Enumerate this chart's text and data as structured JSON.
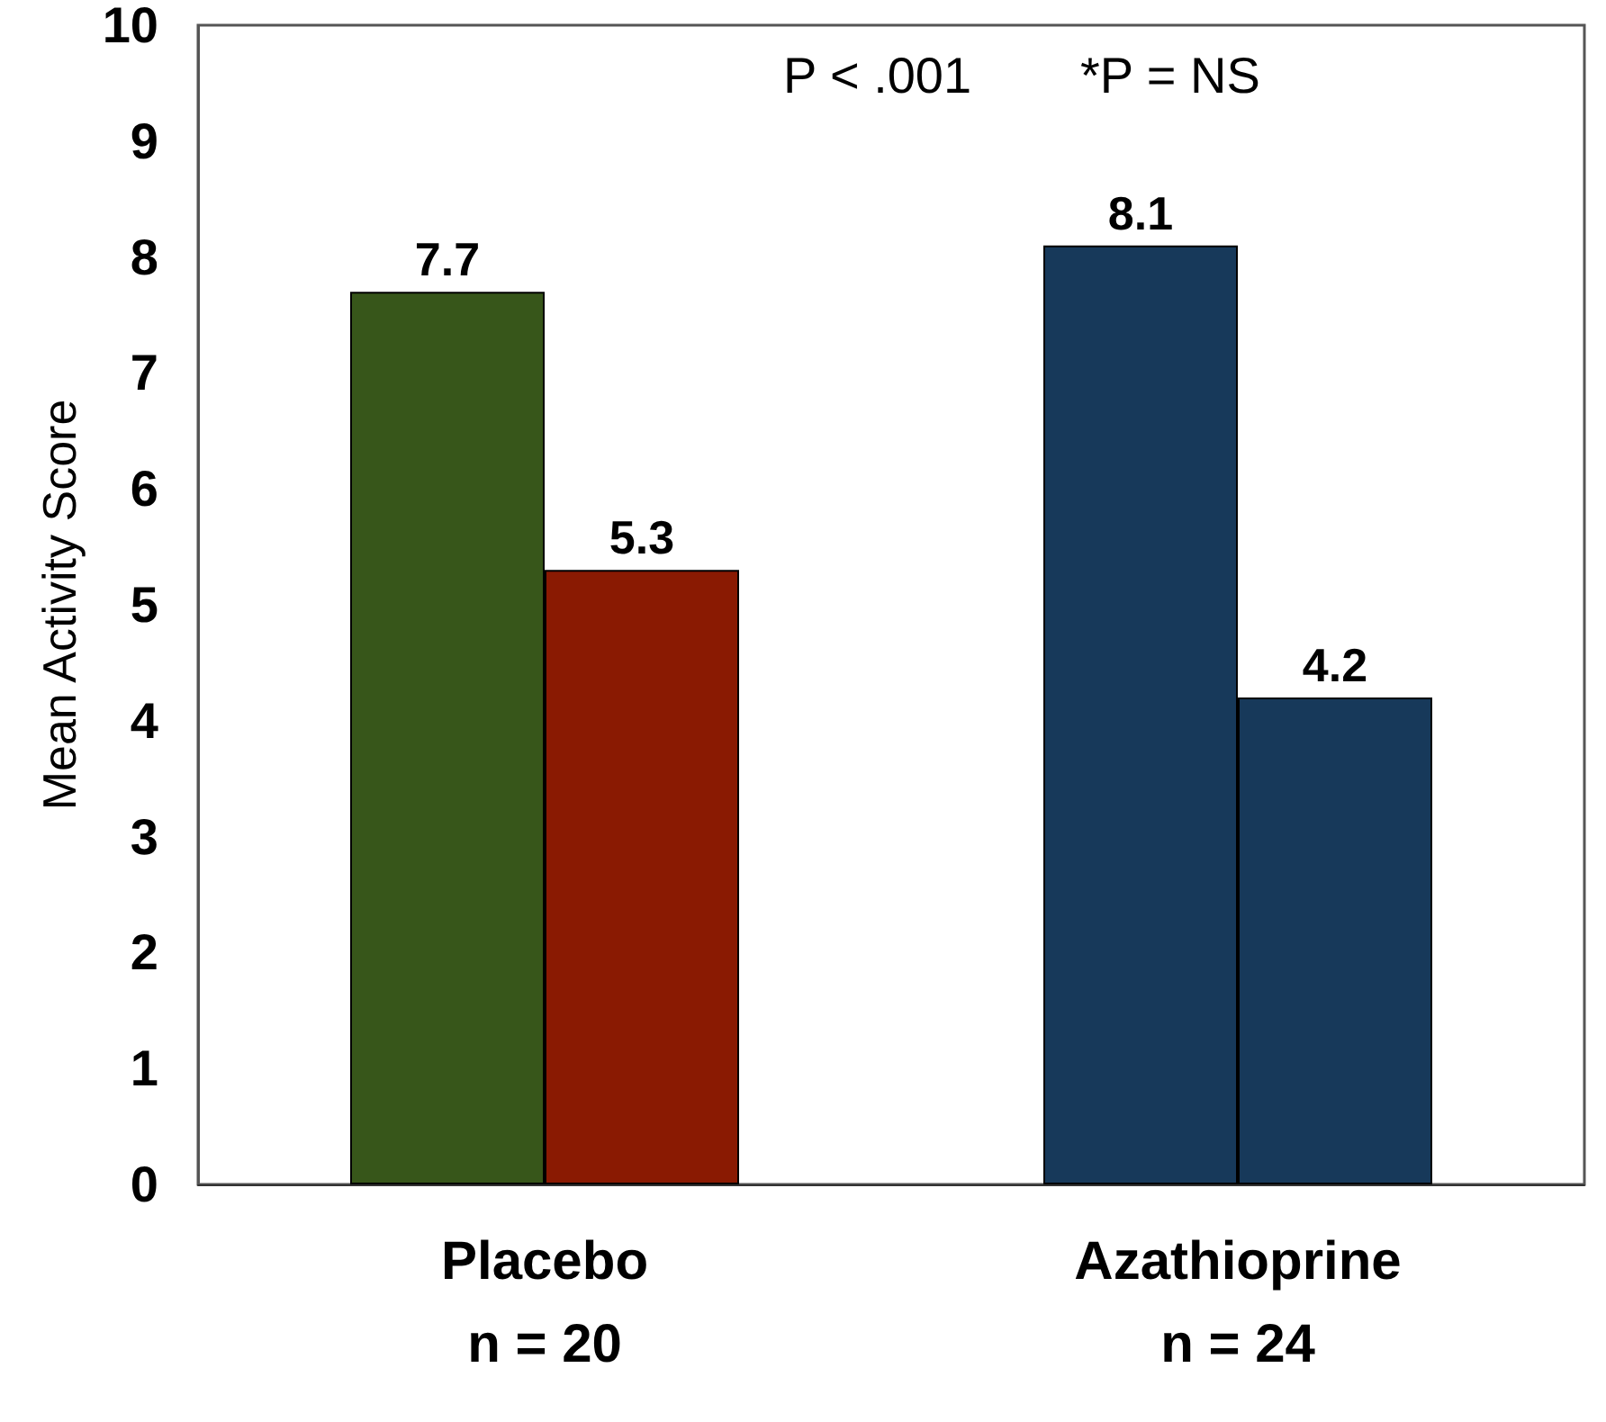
{
  "chart_data": {
    "type": "bar",
    "ylabel": "Mean Activity Score",
    "categories": [
      "Placebo\nn = 20",
      "Azathioprine\nn = 24"
    ],
    "series": [
      {
        "colors": [
          "#37561a",
          "#17395a"
        ],
        "values": [
          7.7,
          8.1
        ]
      },
      {
        "colors": [
          "#8a1a02",
          "#17395a"
        ],
        "values": [
          5.3,
          4.2
        ]
      }
    ],
    "ylim": [
      0,
      10
    ],
    "yticks": [
      0,
      1,
      2,
      3,
      4,
      5,
      6,
      7,
      8,
      9,
      10
    ],
    "grid": false,
    "data_labels": true,
    "annotations": [
      "P < .001",
      "*P = NS"
    ]
  }
}
